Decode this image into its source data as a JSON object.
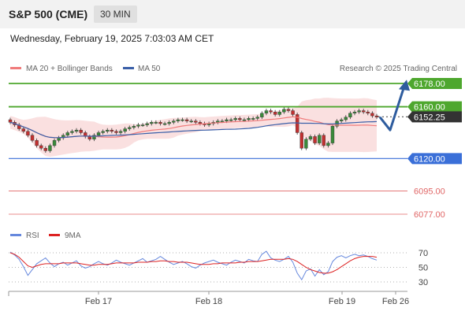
{
  "header": {
    "title": "S&P 500 (CME)",
    "timeframe": "30 MIN",
    "datetime": "Wednesday, February 19, 2025 7:03:03 AM CET"
  },
  "legend": {
    "ma20": "MA 20 + Bollinger Bands",
    "ma50": "MA 50",
    "credit": "Research © 2025 Trading Central",
    "rsi": "RSI",
    "rsi_ma": "9MA"
  },
  "colors": {
    "resistance": "#4ea72e",
    "support": "#3a6fd8",
    "target": "#e06666",
    "current": "#333333",
    "arrow": "#2e5c9e",
    "ma20": "#f07b7b",
    "ma50": "#3a5fa8",
    "bands": "#f8d5d5",
    "up_candle": "#3a8a3a",
    "down_candle": "#c23030",
    "rsi": "#6688dd",
    "rsi_ma": "#dd2222"
  },
  "chart_data": {
    "type": "candlestick",
    "x_labels": [
      "Feb 17",
      "Feb 18",
      "Feb 19",
      "Feb 26"
    ],
    "levels": [
      {
        "label": "6178.00",
        "value": 6178.0,
        "kind": "resistance"
      },
      {
        "label": "6160.00",
        "value": 6160.0,
        "kind": "resistance"
      },
      {
        "label": "6152.25",
        "value": 6152.25,
        "kind": "current"
      },
      {
        "label": "6120.00",
        "value": 6120.0,
        "kind": "support"
      },
      {
        "label": "6095.00",
        "value": 6095.0,
        "kind": "target"
      },
      {
        "label": "6077.00",
        "value": 6077.0,
        "kind": "target"
      }
    ],
    "price_close": [
      6148,
      6146,
      6143,
      6141,
      6138,
      6134,
      6130,
      6128,
      6126,
      6130,
      6134,
      6136,
      6138,
      6140,
      6141,
      6142,
      6140,
      6137,
      6135,
      6138,
      6140,
      6141,
      6142,
      6141,
      6140,
      6141,
      6143,
      6144,
      6145,
      6146,
      6146,
      6147,
      6148,
      6148,
      6147,
      6147,
      6148,
      6149,
      6150,
      6150,
      6149,
      6149,
      6148,
      6147,
      6146,
      6147,
      6148,
      6149,
      6149,
      6150,
      6150,
      6151,
      6150,
      6150,
      6151,
      6151,
      6152,
      6155,
      6157,
      6156,
      6154,
      6156,
      6158,
      6157,
      6154,
      6140,
      6128,
      6135,
      6137,
      6132,
      6138,
      6130,
      6132,
      6145,
      6149,
      6150,
      6152,
      6155,
      6156,
      6157,
      6156,
      6155,
      6153,
      6152
    ],
    "rsi": {
      "levels": [
        70,
        50,
        30
      ],
      "rsi": [
        71,
        67,
        61,
        51,
        39,
        47,
        55,
        59,
        63,
        56,
        51,
        55,
        57,
        53,
        56,
        59,
        52,
        49,
        51,
        55,
        58,
        55,
        53,
        56,
        60,
        57,
        55,
        53,
        56,
        59,
        62,
        57,
        59,
        61,
        65,
        61,
        57,
        54,
        56,
        58,
        55,
        51,
        49,
        53,
        56,
        58,
        60,
        57,
        55,
        53,
        57,
        60,
        58,
        56,
        61,
        59,
        58,
        68,
        72,
        63,
        60,
        58,
        61,
        65,
        57,
        42,
        33,
        45,
        48,
        38,
        47,
        40,
        44,
        58,
        64,
        66,
        63,
        66,
        68,
        66,
        67,
        65,
        62,
        60
      ],
      "ma": [
        70,
        68,
        64,
        58,
        52,
        50,
        52,
        54,
        55,
        55,
        55,
        55,
        56,
        56,
        56,
        56,
        55,
        54,
        53,
        53,
        54,
        54,
        54,
        55,
        56,
        56,
        56,
        56,
        56,
        57,
        57,
        57,
        58,
        58,
        59,
        59,
        58,
        58,
        57,
        57,
        57,
        56,
        55,
        54,
        54,
        54,
        55,
        55,
        56,
        56,
        56,
        56,
        57,
        57,
        58,
        58,
        58,
        59,
        60,
        61,
        61,
        61,
        61,
        62,
        61,
        58,
        54,
        50,
        47,
        45,
        43,
        42,
        42,
        44,
        47,
        51,
        55,
        59,
        62,
        64,
        65,
        65,
        65,
        64
      ]
    }
  }
}
